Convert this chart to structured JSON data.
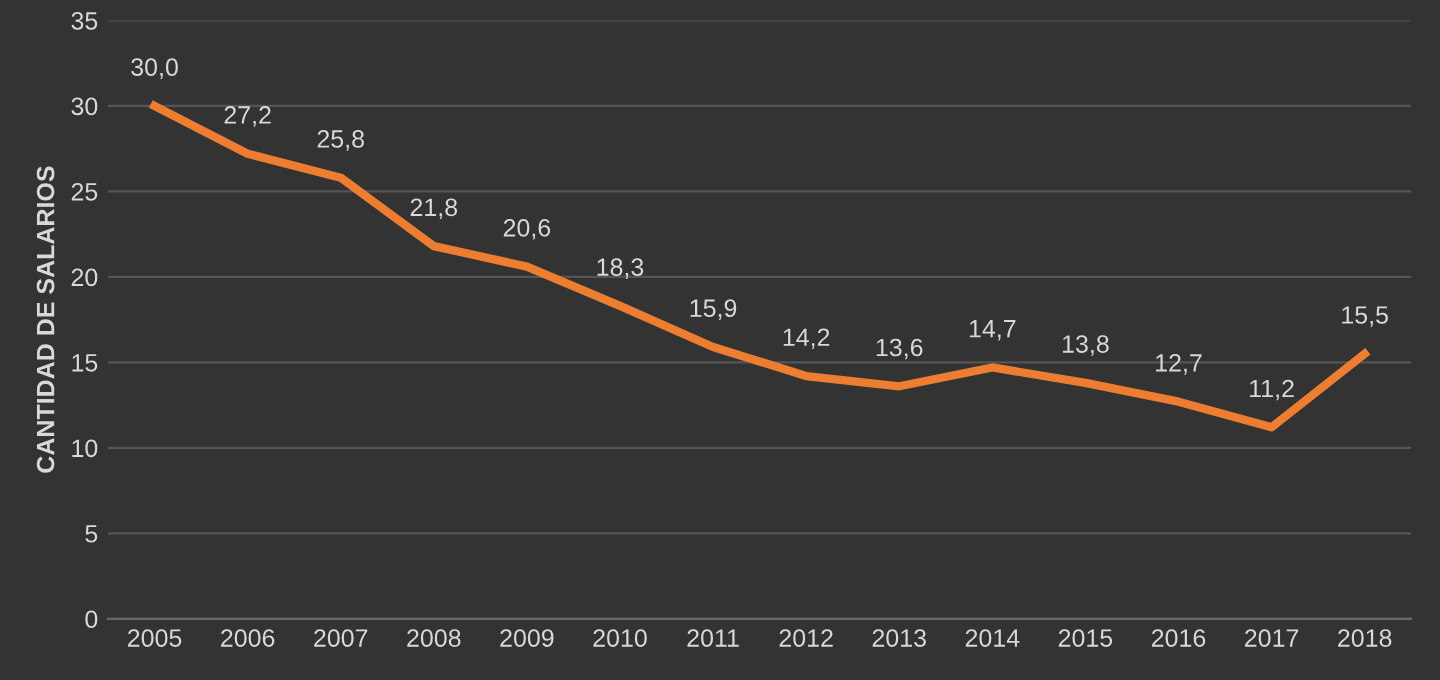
{
  "chart_data": {
    "type": "line",
    "ylabel": "CANTIDAD DE SALARIOS",
    "categories": [
      "2005",
      "2006",
      "2007",
      "2008",
      "2009",
      "2010",
      "2011",
      "2012",
      "2013",
      "2014",
      "2015",
      "2016",
      "2017",
      "2018"
    ],
    "series": [
      {
        "color": "#ed7d31",
        "values": [
          30.0,
          27.2,
          25.8,
          21.8,
          20.6,
          18.3,
          15.9,
          14.2,
          13.6,
          14.7,
          13.8,
          12.7,
          11.2,
          15.5
        ],
        "value_labels": [
          "30,0",
          "27,2",
          "25,8",
          "21,8",
          "20,6",
          "18,3",
          "15,9",
          "14,2",
          "13,6",
          "14,7",
          "13,8",
          "12,7",
          "11,2",
          "15,5"
        ]
      }
    ],
    "ylim": [
      0,
      35
    ],
    "yticks": [
      0,
      5,
      10,
      15,
      20,
      25,
      30,
      35
    ],
    "grid": "y",
    "marker": "none",
    "line_style": "solid"
  }
}
